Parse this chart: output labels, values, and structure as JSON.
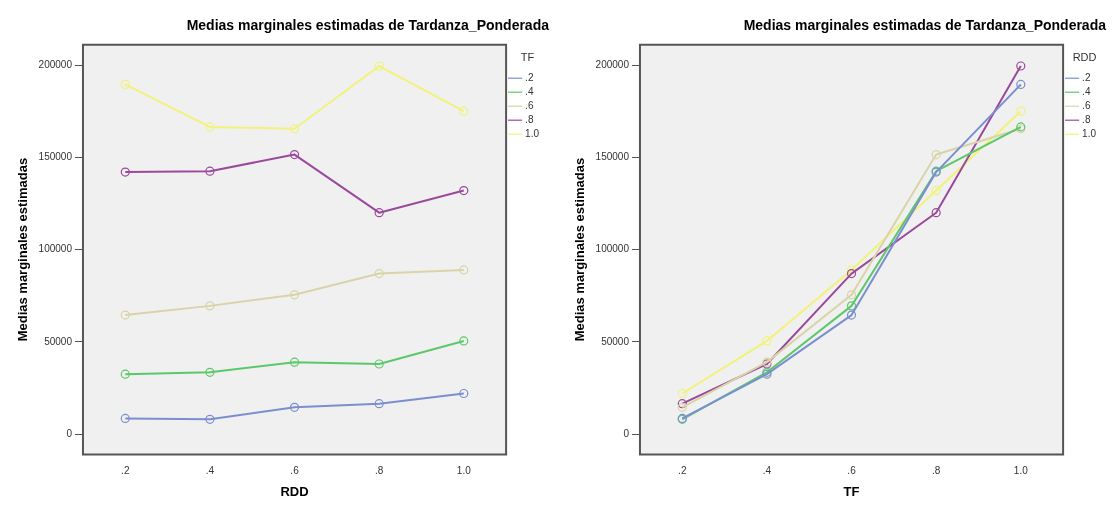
{
  "chart_data": [
    {
      "type": "line",
      "title": "Medias marginales estimadas de Tardanza_Ponderada",
      "xlabel": "RDD",
      "ylabel": "Medias marginales estimadas",
      "legend_title": "TF",
      "categories": [
        ".2",
        ".4",
        ".6",
        ".8",
        "1.0"
      ],
      "ylim": [
        -11000,
        211000
      ],
      "yticks": [
        0,
        50000,
        100000,
        150000,
        200000
      ],
      "grid": false,
      "legend": "top right",
      "marker": "circle",
      "line_style": "solid",
      "series": [
        {
          "name": ".2",
          "color": "#7b8fd0",
          "values": [
            8500,
            8000,
            14500,
            16500,
            22000
          ]
        },
        {
          "name": ".4",
          "color": "#5cc86a",
          "values": [
            32500,
            33500,
            39000,
            38000,
            50500
          ]
        },
        {
          "name": ".6",
          "color": "#d8d4a8",
          "values": [
            64500,
            69500,
            75500,
            87000,
            89000
          ]
        },
        {
          "name": ".8",
          "color": "#9b4a9b",
          "values": [
            142000,
            142500,
            151500,
            120000,
            132000
          ]
        },
        {
          "name": "1.0",
          "color": "#f2f27a",
          "values": [
            189500,
            166500,
            165500,
            199500,
            175000
          ]
        }
      ]
    },
    {
      "type": "line",
      "title": "Medias marginales estimadas de Tardanza_Ponderada",
      "xlabel": "TF",
      "ylabel": "Medias marginales estimadas",
      "legend_title": "RDD",
      "categories": [
        ".2",
        ".4",
        ".6",
        ".8",
        "1.0"
      ],
      "ylim": [
        -11000,
        211000
      ],
      "yticks": [
        0,
        50000,
        100000,
        150000,
        200000
      ],
      "grid": false,
      "legend": "top right",
      "marker": "circle",
      "line_style": "solid",
      "series": [
        {
          "name": ".2",
          "color": "#7b8fd0",
          "values": [
            8500,
            32500,
            64500,
            142000,
            189500
          ]
        },
        {
          "name": ".4",
          "color": "#5cc86a",
          "values": [
            8000,
            33500,
            69500,
            142500,
            166500
          ]
        },
        {
          "name": ".6",
          "color": "#d8d4a8",
          "values": [
            14500,
            39000,
            75500,
            151500,
            165500
          ]
        },
        {
          "name": ".8",
          "color": "#9b4a9b",
          "values": [
            16500,
            38000,
            87000,
            120000,
            199500
          ]
        },
        {
          "name": "1.0",
          "color": "#f2f27a",
          "values": [
            22000,
            50500,
            89000,
            132000,
            175000
          ]
        }
      ]
    }
  ]
}
